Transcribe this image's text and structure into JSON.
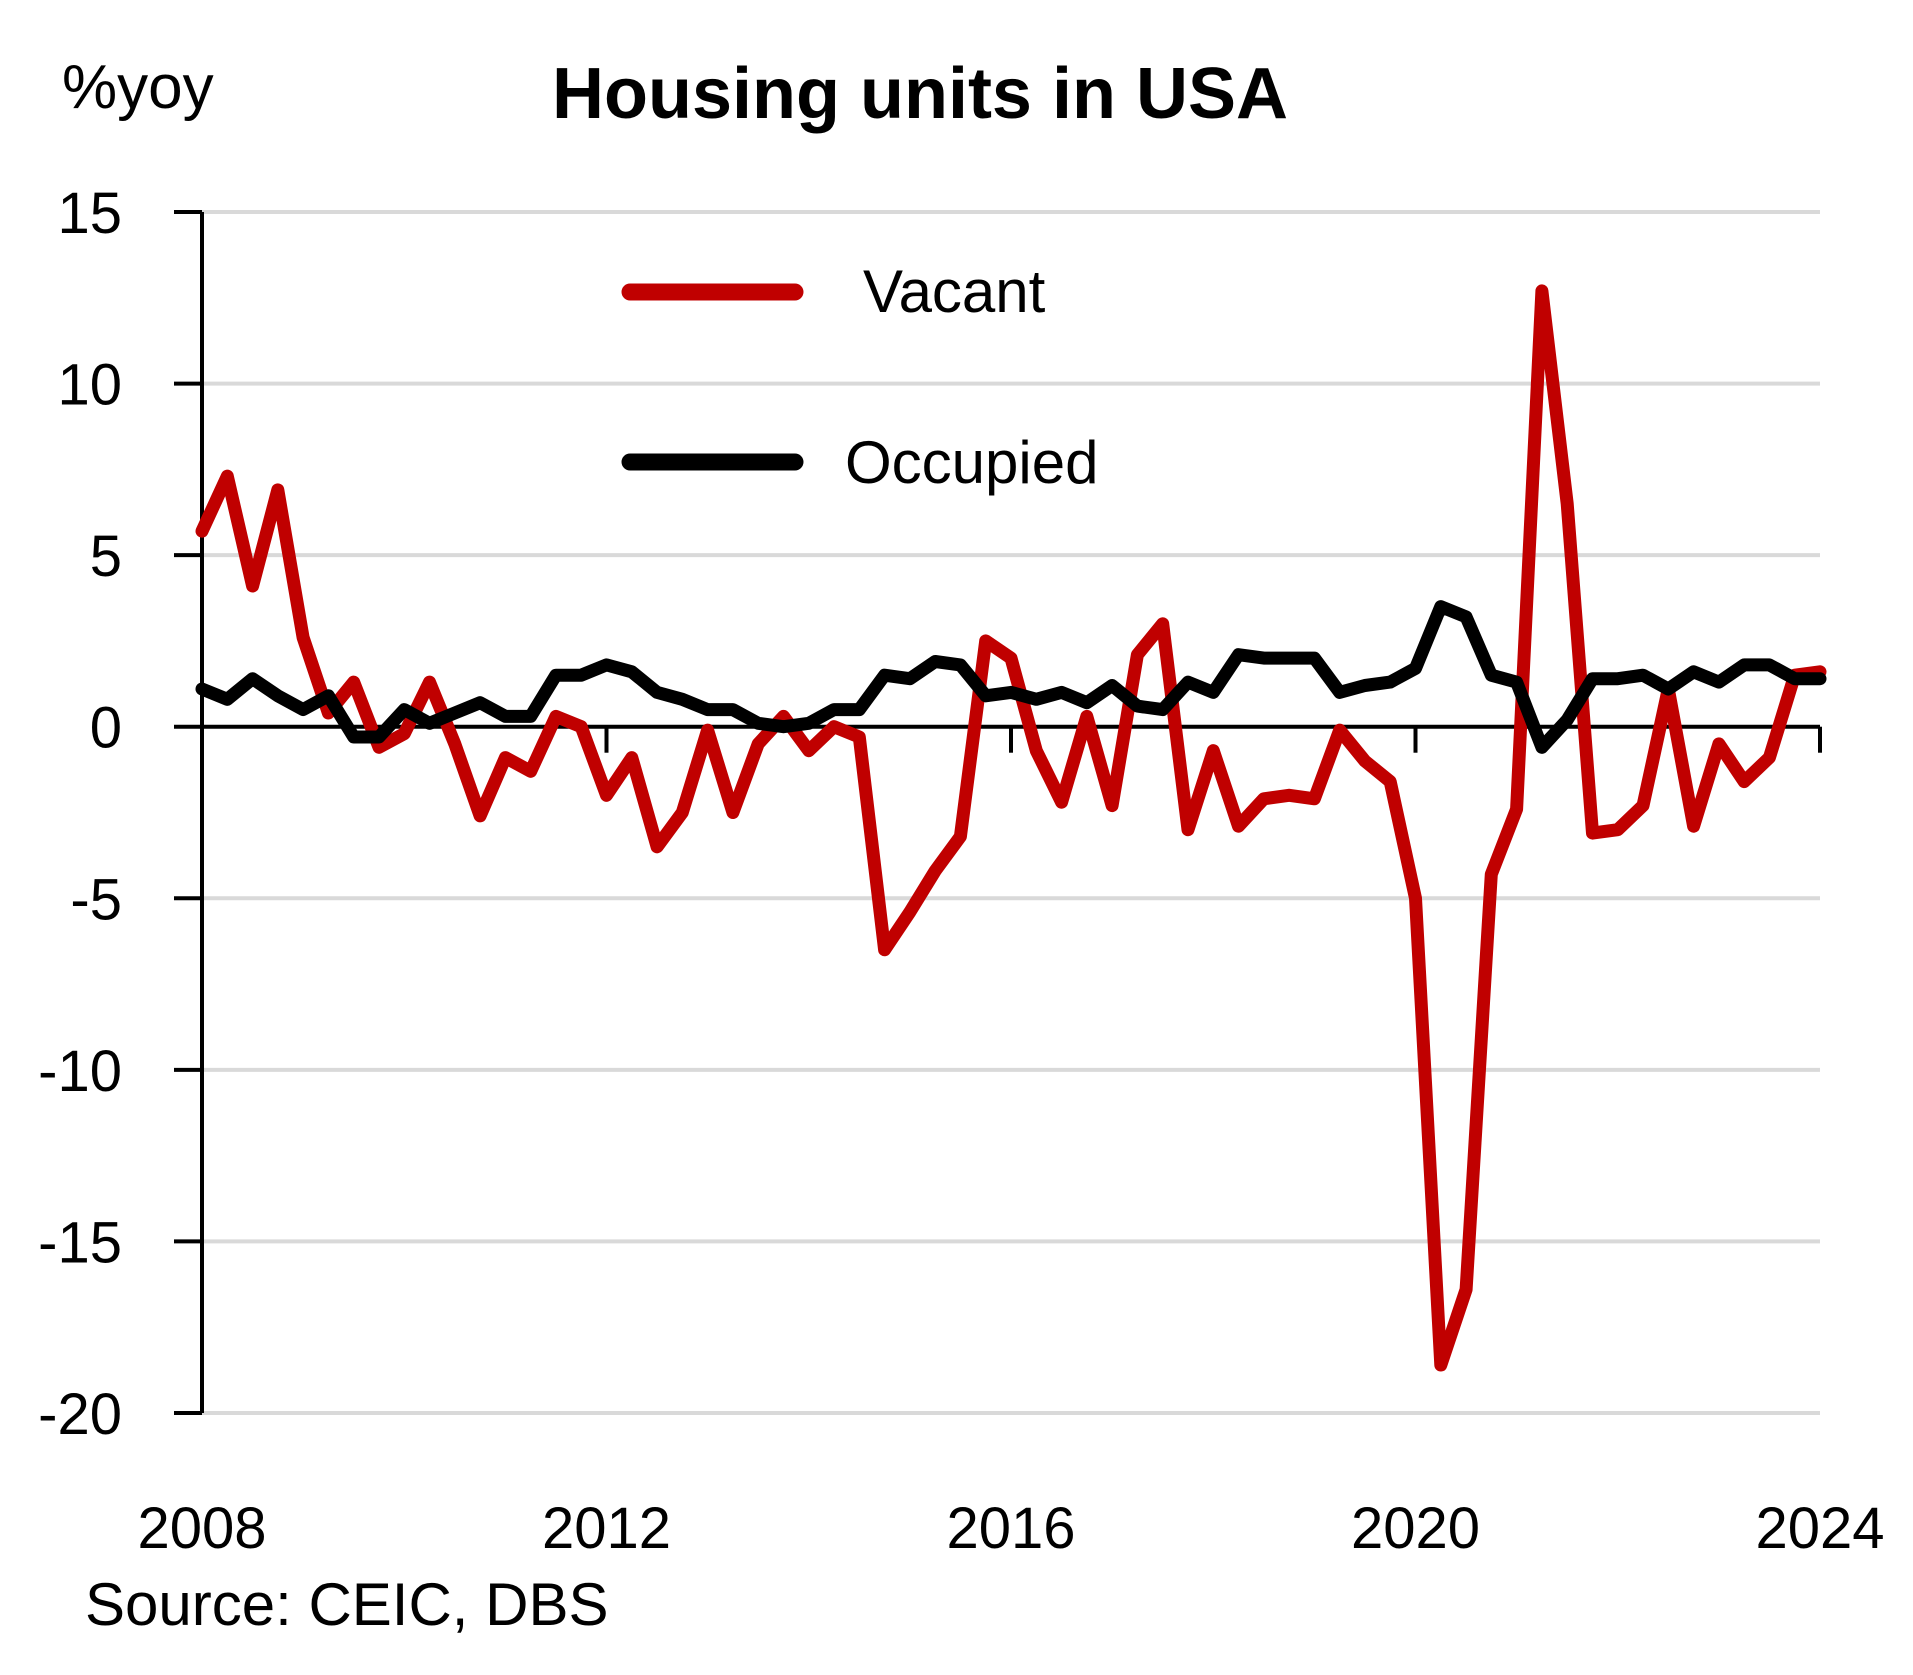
{
  "chart_data": {
    "type": "line",
    "title": "Housing units in USA",
    "ylabel": "%yoy",
    "source": "Source: CEIC, DBS",
    "xlim": [
      2008,
      2024
    ],
    "ylim": [
      -20,
      15
    ],
    "yticks": [
      15,
      10,
      5,
      0,
      -5,
      -10,
      -15,
      -20
    ],
    "ytick_labels": [
      "15",
      "10",
      "5",
      "0",
      "-5",
      "-10",
      "-15",
      "-20"
    ],
    "xtick_labels": [
      {
        "x": 2008,
        "label": "2008"
      },
      {
        "x": 2012,
        "label": "2012"
      },
      {
        "x": 2016,
        "label": "2016"
      },
      {
        "x": 2020,
        "label": "2020"
      },
      {
        "x": 2024,
        "label": "2024"
      }
    ],
    "grid": true,
    "legend_position": "top-center",
    "series": [
      {
        "name": "Vacant",
        "color": "#C00000",
        "points": [
          [
            2008.0,
            5.7
          ],
          [
            2008.25,
            7.3
          ],
          [
            2008.5,
            4.1
          ],
          [
            2008.75,
            6.9
          ],
          [
            2009.0,
            2.6
          ],
          [
            2009.25,
            0.4
          ],
          [
            2009.5,
            1.3
          ],
          [
            2009.75,
            -0.6
          ],
          [
            2010.0,
            -0.2
          ],
          [
            2010.25,
            1.3
          ],
          [
            2010.5,
            -0.5
          ],
          [
            2010.75,
            -2.6
          ],
          [
            2011.0,
            -0.9
          ],
          [
            2011.25,
            -1.3
          ],
          [
            2011.5,
            0.3
          ],
          [
            2011.75,
            0.0
          ],
          [
            2012.0,
            -2.0
          ],
          [
            2012.25,
            -0.9
          ],
          [
            2012.5,
            -3.5
          ],
          [
            2012.75,
            -2.5
          ],
          [
            2013.0,
            -0.1
          ],
          [
            2013.25,
            -2.5
          ],
          [
            2013.5,
            -0.5
          ],
          [
            2013.75,
            0.3
          ],
          [
            2014.0,
            -0.7
          ],
          [
            2014.25,
            0.0
          ],
          [
            2014.5,
            -0.3
          ],
          [
            2014.75,
            -6.5
          ],
          [
            2015.0,
            -5.4
          ],
          [
            2015.25,
            -4.2
          ],
          [
            2015.5,
            -3.2
          ],
          [
            2015.75,
            2.5
          ],
          [
            2016.0,
            2.0
          ],
          [
            2016.25,
            -0.7
          ],
          [
            2016.5,
            -2.2
          ],
          [
            2016.75,
            0.3
          ],
          [
            2017.0,
            -2.3
          ],
          [
            2017.25,
            2.1
          ],
          [
            2017.5,
            3.0
          ],
          [
            2017.75,
            -3.0
          ],
          [
            2018.0,
            -0.7
          ],
          [
            2018.25,
            -2.9
          ],
          [
            2018.5,
            -2.1
          ],
          [
            2018.75,
            -2.0
          ],
          [
            2019.0,
            -2.1
          ],
          [
            2019.25,
            -0.1
          ],
          [
            2019.5,
            -1.0
          ],
          [
            2019.75,
            -1.6
          ],
          [
            2020.0,
            -5.0
          ],
          [
            2020.25,
            -18.6
          ],
          [
            2020.5,
            -16.4
          ],
          [
            2020.75,
            -4.3
          ],
          [
            2021.0,
            -2.4
          ],
          [
            2021.25,
            12.7
          ],
          [
            2021.5,
            6.5
          ],
          [
            2021.75,
            -3.1
          ],
          [
            2022.0,
            -3.0
          ],
          [
            2022.25,
            -2.3
          ],
          [
            2022.5,
            1.1
          ],
          [
            2022.75,
            -2.9
          ],
          [
            2023.0,
            -0.5
          ],
          [
            2023.25,
            -1.6
          ],
          [
            2023.5,
            -0.9
          ],
          [
            2023.75,
            1.5
          ],
          [
            2024.0,
            1.6
          ]
        ]
      },
      {
        "name": "Occupied",
        "color": "#000000",
        "points": [
          [
            2008.0,
            1.1
          ],
          [
            2008.25,
            0.8
          ],
          [
            2008.5,
            1.4
          ],
          [
            2008.75,
            0.9
          ],
          [
            2009.0,
            0.5
          ],
          [
            2009.25,
            0.9
          ],
          [
            2009.5,
            -0.3
          ],
          [
            2009.75,
            -0.3
          ],
          [
            2010.0,
            0.5
          ],
          [
            2010.25,
            0.1
          ],
          [
            2010.5,
            0.4
          ],
          [
            2010.75,
            0.7
          ],
          [
            2011.0,
            0.3
          ],
          [
            2011.25,
            0.3
          ],
          [
            2011.5,
            1.5
          ],
          [
            2011.75,
            1.5
          ],
          [
            2012.0,
            1.8
          ],
          [
            2012.25,
            1.6
          ],
          [
            2012.5,
            1.0
          ],
          [
            2012.75,
            0.8
          ],
          [
            2013.0,
            0.5
          ],
          [
            2013.25,
            0.5
          ],
          [
            2013.5,
            0.1
          ],
          [
            2013.75,
            0.0
          ],
          [
            2014.0,
            0.1
          ],
          [
            2014.25,
            0.5
          ],
          [
            2014.5,
            0.5
          ],
          [
            2014.75,
            1.5
          ],
          [
            2015.0,
            1.4
          ],
          [
            2015.25,
            1.9
          ],
          [
            2015.5,
            1.8
          ],
          [
            2015.75,
            0.9
          ],
          [
            2016.0,
            1.0
          ],
          [
            2016.25,
            0.8
          ],
          [
            2016.5,
            1.0
          ],
          [
            2016.75,
            0.7
          ],
          [
            2017.0,
            1.2
          ],
          [
            2017.25,
            0.6
          ],
          [
            2017.5,
            0.5
          ],
          [
            2017.75,
            1.3
          ],
          [
            2018.0,
            1.0
          ],
          [
            2018.25,
            2.1
          ],
          [
            2018.5,
            2.0
          ],
          [
            2018.75,
            2.0
          ],
          [
            2019.0,
            2.0
          ],
          [
            2019.25,
            1.0
          ],
          [
            2019.5,
            1.2
          ],
          [
            2019.75,
            1.3
          ],
          [
            2020.0,
            1.7
          ],
          [
            2020.25,
            3.5
          ],
          [
            2020.5,
            3.2
          ],
          [
            2020.75,
            1.5
          ],
          [
            2021.0,
            1.3
          ],
          [
            2021.25,
            -0.6
          ],
          [
            2021.5,
            0.2
          ],
          [
            2021.75,
            1.4
          ],
          [
            2022.0,
            1.4
          ],
          [
            2022.25,
            1.5
          ],
          [
            2022.5,
            1.1
          ],
          [
            2022.75,
            1.6
          ],
          [
            2023.0,
            1.3
          ],
          [
            2023.25,
            1.8
          ],
          [
            2023.5,
            1.8
          ],
          [
            2023.75,
            1.4
          ],
          [
            2024.0,
            1.4
          ]
        ]
      }
    ]
  }
}
